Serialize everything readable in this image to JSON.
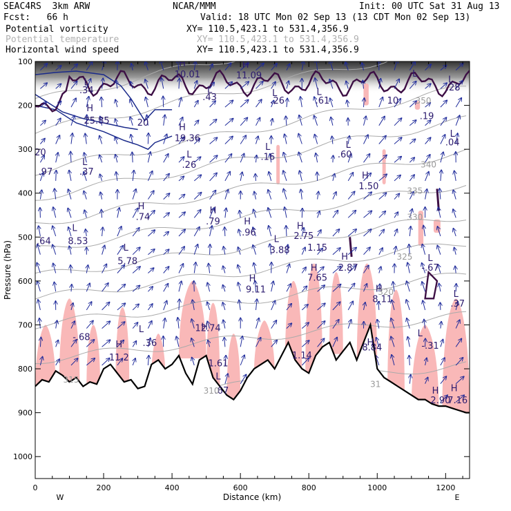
{
  "header": {
    "model": "SEAC4RS  3km ARW",
    "center": "NCAR/MMM",
    "init": "Init: 00 UTC Sat 31 Aug 13",
    "fcst": "Fcst:   66 h",
    "valid": "Valid: 18 UTC Mon 02 Sep 13 (13 CDT Mon 02 Sep 13)",
    "fields": [
      {
        "name": "Potential vorticity",
        "xy": "XY= 110.5,423.1 to 531.4,356.9",
        "color": "#000000"
      },
      {
        "name": "Potential temperature",
        "xy": "XY= 110.5,423.1 to 531.4,356.9",
        "color": "#b0b0b0"
      },
      {
        "name": "Horizontal wind speed",
        "xy": "XY= 110.5,423.1 to 531.4,356.9",
        "color": "#000000"
      }
    ]
  },
  "chart_data": {
    "type": "cross-section",
    "xlabel": "Distance (km)",
    "ylabel": "Pressure (hPa)",
    "xlim": [
      0,
      1270
    ],
    "ylim": [
      1050,
      100
    ],
    "x_ticks": [
      0,
      200,
      400,
      600,
      800,
      1000,
      1200
    ],
    "y_ticks": [
      100,
      200,
      300,
      400,
      500,
      600,
      700,
      800,
      900,
      1000
    ],
    "x_end_labels": {
      "left": "W",
      "right": "E"
    },
    "terrain": {
      "x": [
        0,
        20,
        40,
        60,
        80,
        100,
        120,
        140,
        160,
        180,
        200,
        220,
        240,
        260,
        280,
        300,
        320,
        340,
        360,
        380,
        400,
        420,
        440,
        460,
        480,
        500,
        520,
        540,
        560,
        580,
        600,
        620,
        640,
        660,
        680,
        700,
        720,
        740,
        760,
        780,
        800,
        820,
        840,
        860,
        880,
        900,
        920,
        940,
        960,
        980,
        1000,
        1020,
        1040,
        1060,
        1080,
        1100,
        1120,
        1140,
        1160,
        1180,
        1200,
        1220,
        1240,
        1260,
        1270
      ],
      "p": [
        840,
        825,
        830,
        805,
        815,
        830,
        820,
        840,
        830,
        835,
        800,
        790,
        810,
        830,
        825,
        845,
        840,
        790,
        780,
        800,
        790,
        770,
        810,
        835,
        780,
        770,
        820,
        840,
        860,
        870,
        850,
        820,
        800,
        790,
        780,
        800,
        770,
        740,
        780,
        800,
        810,
        770,
        750,
        740,
        780,
        760,
        740,
        780,
        740,
        700,
        800,
        820,
        830,
        840,
        850,
        860,
        870,
        870,
        880,
        885,
        885,
        890,
        895,
        900,
        900
      ]
    },
    "labels": [
      {
        "t": "H",
        "x": 430,
        "p": 105
      },
      {
        "t": "10.01",
        "x": 445,
        "p": 130
      },
      {
        "t": "H",
        "x": 615,
        "p": 108
      },
      {
        "t": "11.09",
        "x": 625,
        "p": 132
      },
      {
        "t": "L",
        "x": 1110,
        "p": 128
      },
      {
        "t": "L",
        "x": 1215,
        "p": 142
      },
      {
        "t": ".28",
        "x": 1222,
        "p": 160
      },
      {
        "t": "L",
        "x": 150,
        "p": 148
      },
      {
        "t": ".34",
        "x": 150,
        "p": 166
      },
      {
        "t": "L",
        "x": 510,
        "p": 165
      },
      {
        "t": ".43",
        "x": 510,
        "p": 182
      },
      {
        "t": "L",
        "x": 700,
        "p": 172
      },
      {
        "t": ".26",
        "x": 708,
        "p": 190
      },
      {
        "t": "L",
        "x": 830,
        "p": 170
      },
      {
        "t": ".61",
        "x": 840,
        "p": 190
      },
      {
        "t": "10.",
        "x": 1050,
        "p": 190
      },
      {
        "t": ".19",
        "x": 1145,
        "p": 225
      },
      {
        "t": "H",
        "x": 160,
        "p": 207
      },
      {
        "t": "25.85",
        "x": 180,
        "p": 235
      },
      {
        "t": "20",
        "x": 315,
        "p": 240
      },
      {
        "t": "H",
        "x": 430,
        "p": 250
      },
      {
        "t": "19.36",
        "x": 445,
        "p": 275
      },
      {
        "t": "L",
        "x": 1220,
        "p": 265
      },
      {
        "t": ".04",
        "x": 1220,
        "p": 285
      },
      {
        "t": "L",
        "x": 915,
        "p": 290
      },
      {
        "t": ".60",
        "x": 905,
        "p": 312
      },
      {
        "t": "L",
        "x": 680,
        "p": 295
      },
      {
        "t": ".16",
        "x": 680,
        "p": 318
      },
      {
        "t": "20",
        "x": 15,
        "p": 308
      },
      {
        "t": "L",
        "x": 450,
        "p": 312
      },
      {
        "t": ".26",
        "x": 450,
        "p": 336
      },
      {
        "t": "L",
        "x": 145,
        "p": 330
      },
      {
        "t": ".37",
        "x": 150,
        "p": 352
      },
      {
        "t": ".97",
        "x": 30,
        "p": 352
      },
      {
        "t": "H",
        "x": 965,
        "p": 360
      },
      {
        "t": "1.50",
        "x": 975,
        "p": 385
      },
      {
        "t": "H",
        "x": 310,
        "p": 430
      },
      {
        "t": ".74",
        "x": 315,
        "p": 455
      },
      {
        "t": "H",
        "x": 520,
        "p": 440
      },
      {
        "t": ".79",
        "x": 520,
        "p": 465
      },
      {
        "t": "H",
        "x": 620,
        "p": 465
      },
      {
        "t": ".96",
        "x": 625,
        "p": 490
      },
      {
        "t": "H",
        "x": 775,
        "p": 475
      },
      {
        "t": "2.75",
        "x": 785,
        "p": 498
      },
      {
        "t": "L",
        "x": 115,
        "p": 480
      },
      {
        "t": "8.53",
        "x": 125,
        "p": 510
      },
      {
        "t": ".64",
        "x": 25,
        "p": 510
      },
      {
        "t": "L",
        "x": 705,
        "p": 505
      },
      {
        "t": "3.88",
        "x": 715,
        "p": 530
      },
      {
        "t": "1.15",
        "x": 825,
        "p": 525
      },
      {
        "t": "L",
        "x": 265,
        "p": 525
      },
      {
        "t": "5.78",
        "x": 270,
        "p": 555
      },
      {
        "t": "H",
        "x": 905,
        "p": 545
      },
      {
        "t": "2.87",
        "x": 915,
        "p": 570
      },
      {
        "t": "L",
        "x": 1155,
        "p": 548
      },
      {
        "t": "-.67",
        "x": 1155,
        "p": 570
      },
      {
        "t": "H",
        "x": 815,
        "p": 570
      },
      {
        "t": "7.65",
        "x": 825,
        "p": 593
      },
      {
        "t": "H",
        "x": 635,
        "p": 595
      },
      {
        "t": "9.11",
        "x": 645,
        "p": 620
      },
      {
        "t": "H",
        "x": 1005,
        "p": 618
      },
      {
        "t": "8.11",
        "x": 1015,
        "p": 642
      },
      {
        "t": "L",
        "x": 1230,
        "p": 630
      },
      {
        "t": ".37",
        "x": 1235,
        "p": 652
      },
      {
        "t": "H",
        "x": 495,
        "p": 705
      },
      {
        "t": "12.74",
        "x": 505,
        "p": 708
      },
      {
        "t": "L",
        "x": 310,
        "p": 710
      },
      {
        "t": ".36",
        "x": 335,
        "p": 742
      },
      {
        "t": "-.68",
        "x": 135,
        "p": 728
      },
      {
        "t": "H",
        "x": 245,
        "p": 745
      },
      {
        "t": "11.2",
        "x": 245,
        "p": 775
      },
      {
        "t": "L",
        "x": 1125,
        "p": 720
      },
      {
        "t": "-.31",
        "x": 1155,
        "p": 748
      },
      {
        "t": "H",
        "x": 980,
        "p": 740
      },
      {
        "t": "8.84",
        "x": 985,
        "p": 752
      },
      {
        "t": "1.61",
        "x": 535,
        "p": 788
      },
      {
        "t": "1.14",
        "x": 780,
        "p": 770
      },
      {
        "t": "L",
        "x": 535,
        "p": 818
      },
      {
        "t": ".67",
        "x": 545,
        "p": 850
      },
      {
        "t": "H",
        "x": 1170,
        "p": 850
      },
      {
        "t": "H",
        "x": 1225,
        "p": 845
      },
      {
        "t": "2.90",
        "x": 1185,
        "p": 872
      },
      {
        "t": "7.16",
        "x": 1235,
        "p": 872
      }
    ],
    "theta_labels": [
      {
        "t": "350",
        "x": 1135,
        "p": 190
      },
      {
        "t": "340",
        "x": 1150,
        "p": 335
      },
      {
        "t": "335",
        "x": 1110,
        "p": 395
      },
      {
        "t": "330",
        "x": 1110,
        "p": 455
      },
      {
        "t": "325",
        "x": 1080,
        "p": 545
      },
      {
        "t": "320",
        "x": 1025,
        "p": 625
      },
      {
        "t": "31",
        "x": 995,
        "p": 835
      },
      {
        "t": "315",
        "x": 105,
        "p": 825
      },
      {
        "t": "310",
        "x": 515,
        "p": 850
      }
    ]
  }
}
